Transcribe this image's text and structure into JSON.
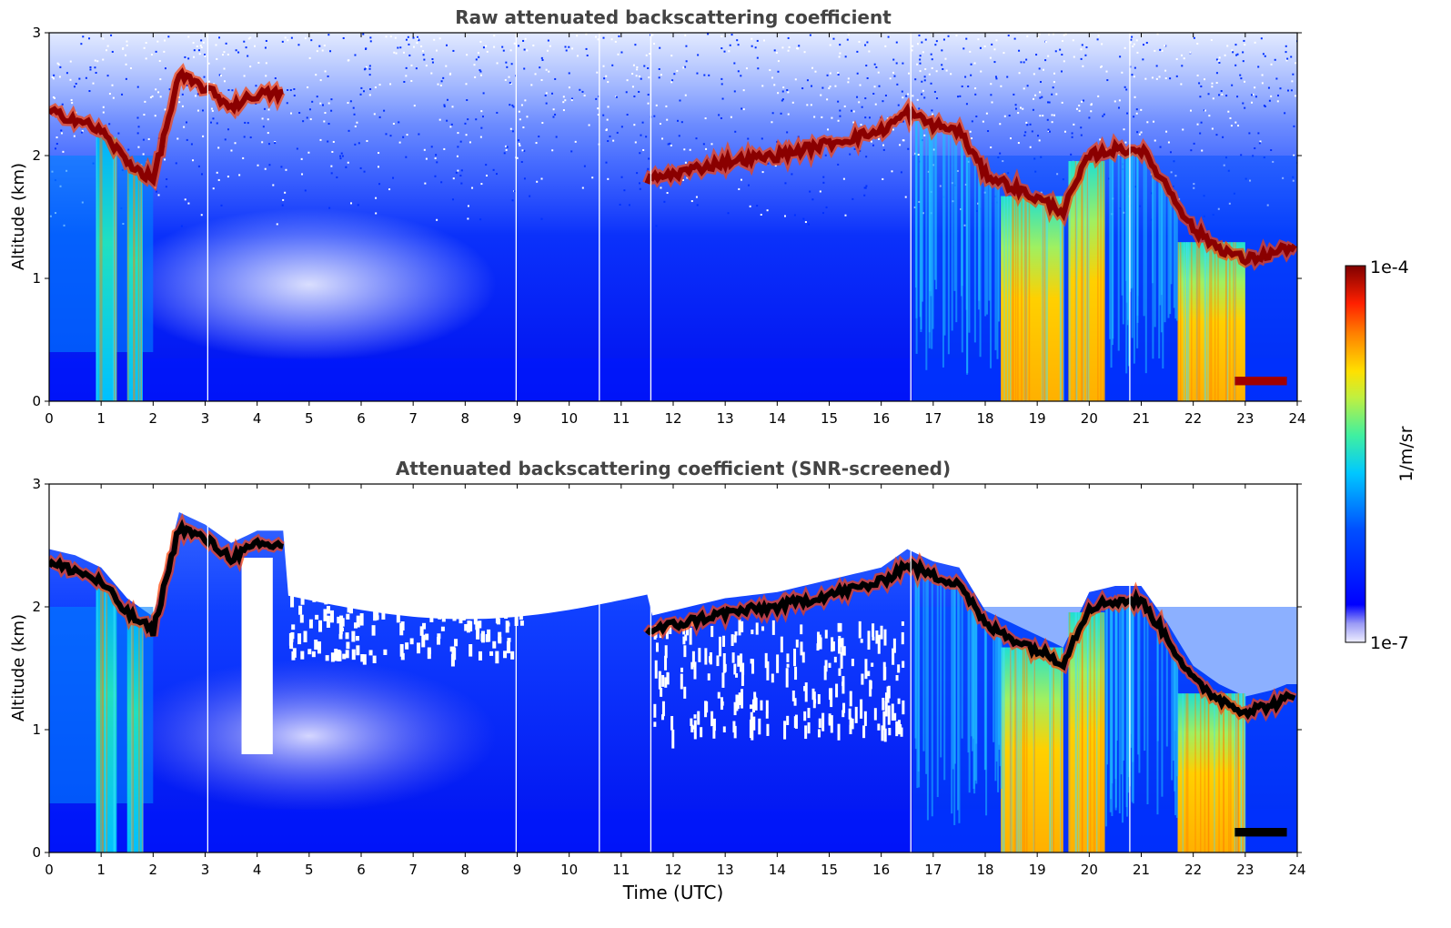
{
  "chart_data": [
    {
      "type": "heatmap",
      "title": "Raw attenuated backscattering coefficient",
      "xlabel": "",
      "ylabel": "Altitude (km)",
      "xlim": [
        0,
        24
      ],
      "ylim": [
        0,
        3
      ],
      "x_ticks": [
        "0",
        "1",
        "2",
        "3",
        "4",
        "5",
        "6",
        "7",
        "8",
        "9",
        "10",
        "11",
        "12",
        "13",
        "14",
        "15",
        "16",
        "17",
        "18",
        "19",
        "20",
        "21",
        "22",
        "23",
        "24"
      ],
      "y_ticks": [
        "0",
        "1",
        "2",
        "3"
      ],
      "grid": false,
      "cloud_layer": {
        "x": [
          0,
          0.5,
          1,
          1.5,
          2,
          2.5,
          3,
          3.5,
          4,
          4.5,
          11.5,
          12,
          13,
          14,
          15,
          16,
          16.5,
          17,
          17.5,
          18,
          18.5,
          19,
          19.5,
          20,
          20.5,
          21,
          21.5,
          22,
          22.5,
          23,
          23.5,
          23.8
        ],
        "y": [
          2.35,
          2.3,
          2.2,
          1.95,
          1.8,
          2.65,
          2.55,
          2.4,
          2.5,
          2.5,
          1.8,
          1.85,
          1.95,
          2.0,
          2.1,
          2.2,
          2.35,
          2.25,
          2.2,
          1.85,
          1.75,
          1.65,
          1.55,
          2.0,
          2.05,
          2.05,
          1.75,
          1.4,
          1.25,
          1.15,
          1.2,
          1.25
        ]
      },
      "precipitation_columns_utc": [
        [
          0.9,
          1.3
        ],
        [
          1.5,
          1.8
        ],
        [
          18.3,
          19.5
        ],
        [
          19.6,
          20.3
        ],
        [
          21.7,
          23.0
        ]
      ],
      "fog_layer": {
        "x_range": [
          22.8,
          23.8
        ],
        "altitude": 0.15
      }
    },
    {
      "type": "heatmap",
      "title": "Attenuated backscattering coefficient (SNR-screened)",
      "xlabel": "Time (UTC)",
      "ylabel": "Altitude (km)",
      "xlim": [
        0,
        24
      ],
      "ylim": [
        0,
        3
      ],
      "x_ticks": [
        "0",
        "1",
        "2",
        "3",
        "4",
        "5",
        "6",
        "7",
        "8",
        "9",
        "10",
        "11",
        "12",
        "13",
        "14",
        "15",
        "16",
        "17",
        "18",
        "19",
        "20",
        "21",
        "22",
        "23",
        "24"
      ],
      "y_ticks": [
        "0",
        "1",
        "2",
        "3"
      ],
      "grid": false,
      "screening": "low SNR removed (white)"
    }
  ],
  "colorbar": {
    "label": "1/m/sr",
    "max_label": "1e-4",
    "min_label": "1e-7",
    "colormap": [
      "#e8e8ff",
      "#b8b8f8",
      "#6a6af0",
      "#0000ff",
      "#0030ff",
      "#0080ff",
      "#00c8ff",
      "#20e8c0",
      "#80f080",
      "#d0f040",
      "#ffe000",
      "#ffa000",
      "#ff5000",
      "#e01000",
      "#a00000",
      "#700000"
    ]
  },
  "colors": {
    "background_low": "#0018f0",
    "precip": "#ffd200",
    "cloud": "#8a0000",
    "axis_title": "#444444"
  }
}
